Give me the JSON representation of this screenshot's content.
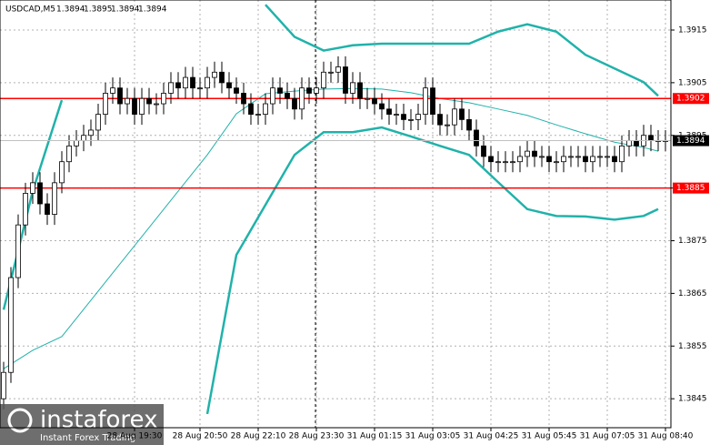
{
  "chart_data": {
    "type": "candlestick",
    "title": "USDCAD,M5",
    "header_values": [
      1.3894,
      1.3895,
      1.3894,
      1.3894
    ],
    "categories": [
      null,
      null,
      null,
      null,
      null,
      null,
      null,
      null,
      null,
      null,
      null,
      null,
      null,
      null,
      null,
      null,
      null,
      null,
      "28 Aug 19:30",
      null,
      null,
      null,
      null,
      null,
      null,
      null,
      null,
      "28 Aug 20:50",
      null,
      null,
      null,
      null,
      null,
      null,
      null,
      "28 Aug 22:10",
      null,
      null,
      null,
      null,
      null,
      null,
      null,
      "28 Aug 23:30",
      null,
      null,
      null,
      null,
      null,
      null,
      null,
      "31 Aug 01:15",
      null,
      null,
      null,
      null,
      null,
      null,
      null,
      "31 Aug 03:05",
      null,
      null,
      null,
      null,
      null,
      null,
      null,
      "31 Aug 04:25",
      null,
      null,
      null,
      null,
      null,
      null,
      null,
      "31 Aug 05:45",
      null,
      null,
      null,
      null,
      null,
      null,
      null,
      "31 Aug 07:05",
      null,
      null,
      null,
      null,
      null,
      null,
      null,
      "31 Aug 08:40"
    ],
    "open": [
      1.3845,
      1.385,
      1.3868,
      1.3878,
      1.3884,
      1.3886,
      1.3882,
      1.388,
      1.3886,
      1.389,
      1.3893,
      1.3894,
      1.3895,
      1.3896,
      1.3899,
      1.3903,
      1.3904,
      1.3901,
      1.3902,
      1.3899,
      1.3902,
      1.3901,
      1.3901,
      1.3903,
      1.3905,
      1.3904,
      1.3906,
      1.3904,
      1.3904,
      1.3906,
      1.3907,
      1.3905,
      1.3904,
      1.3903,
      1.3901,
      1.3899,
      1.3899,
      1.3901,
      1.3904,
      1.3903,
      1.3902,
      1.39,
      1.3904,
      1.3903,
      1.3904,
      1.3907,
      1.3907,
      1.3908,
      1.3903,
      1.3905,
      1.3902,
      1.3902,
      1.3901,
      1.39,
      1.3899,
      1.3899,
      1.3898,
      1.3898,
      1.3899,
      1.3904,
      1.3899,
      1.3897,
      1.3897,
      1.39,
      1.3898,
      1.3896,
      1.3893,
      1.3891,
      1.389,
      1.389,
      1.389,
      1.389,
      1.3891,
      1.3892,
      1.3891,
      1.3891,
      1.389,
      1.389,
      1.3891,
      1.3891,
      1.3891,
      1.389,
      1.3891,
      1.3891,
      1.3891,
      1.389,
      1.3893,
      1.3894,
      1.3893,
      1.3895,
      1.3894,
      1.3894
    ],
    "high": [
      1.3852,
      1.387,
      1.388,
      1.3886,
      1.3888,
      1.3888,
      1.3884,
      1.3888,
      1.3892,
      1.3895,
      1.3896,
      1.3897,
      1.3898,
      1.3901,
      1.3905,
      1.3906,
      1.3906,
      1.3904,
      1.3904,
      1.3904,
      1.3904,
      1.3903,
      1.3905,
      1.3907,
      1.3907,
      1.3908,
      1.3908,
      1.3906,
      1.3908,
      1.3909,
      1.3909,
      1.3907,
      1.3906,
      1.3905,
      1.3903,
      1.3901,
      1.3903,
      1.3906,
      1.3906,
      1.3905,
      1.3904,
      1.3906,
      1.3906,
      1.3906,
      1.3909,
      1.3909,
      1.391,
      1.391,
      1.3907,
      1.3907,
      1.3904,
      1.3904,
      1.3903,
      1.3902,
      1.3901,
      1.3901,
      1.39,
      1.3901,
      1.3906,
      1.3906,
      1.3901,
      1.3899,
      1.3902,
      1.3902,
      1.39,
      1.3898,
      1.3895,
      1.3893,
      1.3892,
      1.3892,
      1.3892,
      1.3893,
      1.3894,
      1.3894,
      1.3893,
      1.3893,
      1.3892,
      1.3893,
      1.3893,
      1.3893,
      1.3893,
      1.3893,
      1.3893,
      1.3893,
      1.3893,
      1.3895,
      1.3896,
      1.3896,
      1.3897,
      1.3897,
      1.3896,
      1.3896
    ],
    "low": [
      1.3843,
      1.3848,
      1.3866,
      1.3876,
      1.3882,
      1.388,
      1.3878,
      1.3878,
      1.3884,
      1.3888,
      1.3891,
      1.3892,
      1.3893,
      1.3894,
      1.3897,
      1.3901,
      1.3899,
      1.3899,
      1.3897,
      1.3897,
      1.3899,
      1.3899,
      1.3899,
      1.3901,
      1.3902,
      1.3902,
      1.3902,
      1.3902,
      1.3902,
      1.3904,
      1.3903,
      1.3902,
      1.3901,
      1.3899,
      1.3897,
      1.3897,
      1.3897,
      1.3899,
      1.3901,
      1.39,
      1.3898,
      1.3898,
      1.3901,
      1.3901,
      1.3902,
      1.3905,
      1.3905,
      1.3901,
      1.3901,
      1.39,
      1.39,
      1.3899,
      1.3898,
      1.3897,
      1.3897,
      1.3896,
      1.3896,
      1.3896,
      1.3897,
      1.3897,
      1.3895,
      1.3895,
      1.3895,
      1.3896,
      1.3894,
      1.3891,
      1.3889,
      1.3888,
      1.3888,
      1.3888,
      1.3888,
      1.3888,
      1.3889,
      1.3889,
      1.3889,
      1.3888,
      1.3888,
      1.3888,
      1.3889,
      1.3889,
      1.3888,
      1.3888,
      1.3889,
      1.3889,
      1.3888,
      1.3888,
      1.3891,
      1.3891,
      1.3891,
      1.3892,
      1.3892,
      1.3892
    ],
    "close": [
      1.385,
      1.3868,
      1.3878,
      1.3884,
      1.3886,
      1.3882,
      1.388,
      1.3886,
      1.389,
      1.3893,
      1.3894,
      1.3895,
      1.3896,
      1.3899,
      1.3903,
      1.3904,
      1.3901,
      1.3902,
      1.3899,
      1.3902,
      1.3901,
      1.3901,
      1.3903,
      1.3905,
      1.3904,
      1.3906,
      1.3904,
      1.3904,
      1.3906,
      1.3907,
      1.3905,
      1.3904,
      1.3903,
      1.3901,
      1.3899,
      1.3899,
      1.3901,
      1.3904,
      1.3903,
      1.3902,
      1.39,
      1.3904,
      1.3903,
      1.3904,
      1.3907,
      1.3907,
      1.3908,
      1.3903,
      1.3905,
      1.3902,
      1.3902,
      1.3901,
      1.39,
      1.3899,
      1.3899,
      1.3898,
      1.3898,
      1.3899,
      1.3904,
      1.3899,
      1.3897,
      1.3897,
      1.39,
      1.3898,
      1.3896,
      1.3893,
      1.3891,
      1.389,
      1.389,
      1.389,
      1.389,
      1.3891,
      1.3892,
      1.3891,
      1.3891,
      1.389,
      1.389,
      1.3891,
      1.3891,
      1.3891,
      1.389,
      1.3891,
      1.3891,
      1.3891,
      1.389,
      1.3893,
      1.3894,
      1.3893,
      1.3895,
      1.3894,
      1.3894,
      1.3894
    ],
    "overlay_x": [
      0,
      4,
      8,
      12,
      16,
      20,
      24,
      28,
      32,
      36,
      40,
      44,
      48,
      52,
      56,
      60,
      64,
      68,
      72,
      76,
      80,
      84,
      88,
      90
    ],
    "overlays": [
      {
        "color": "#20b2aa",
        "width": 2.5,
        "values": [
          1.38619,
          1.38844,
          1.39017,
          null,
          null,
          null,
          null,
          null,
          null,
          1.39198,
          1.39137,
          1.39111,
          1.39121,
          1.39124,
          1.39124,
          1.39124,
          1.39124,
          1.39147,
          1.39161,
          1.39147,
          1.39103,
          1.39077,
          1.39051,
          1.39025
        ]
      },
      {
        "color": "#20b2aa",
        "width": 1,
        "values": [
          1.38507,
          1.38542,
          1.38568,
          1.38637,
          1.38706,
          1.38775,
          1.38844,
          1.38913,
          1.38991,
          1.39029,
          1.39034,
          1.39038,
          1.39039,
          1.39038,
          1.39031,
          1.3902,
          1.39012,
          1.39,
          1.38988,
          1.3897,
          1.38953,
          1.38937,
          1.38927,
          1.3892
        ]
      },
      {
        "color": "#20b2aa",
        "width": 2.5,
        "values": [
          null,
          null,
          null,
          null,
          null,
          null,
          null,
          1.38421,
          1.38723,
          1.38818,
          1.38913,
          1.38956,
          1.38956,
          1.38965,
          1.38948,
          1.3893,
          1.38913,
          1.38861,
          1.3881,
          1.38797,
          1.38796,
          1.3879,
          1.38797,
          1.3881
        ]
      }
    ],
    "levels": [
      {
        "value": 1.3902,
        "color": "#ff0000"
      },
      {
        "value": 1.3885,
        "color": "#ff0000"
      }
    ],
    "last_price": 1.3894,
    "ylim": [
      1.38395,
      1.39207
    ],
    "yticks": [
      1.3915,
      1.3905,
      1.3895,
      1.3885,
      1.3875,
      1.3865,
      1.3855,
      1.3845
    ],
    "grid": true,
    "watermark": {
      "brand": "instaforex",
      "tagline": "Instant Forex Trading"
    }
  }
}
